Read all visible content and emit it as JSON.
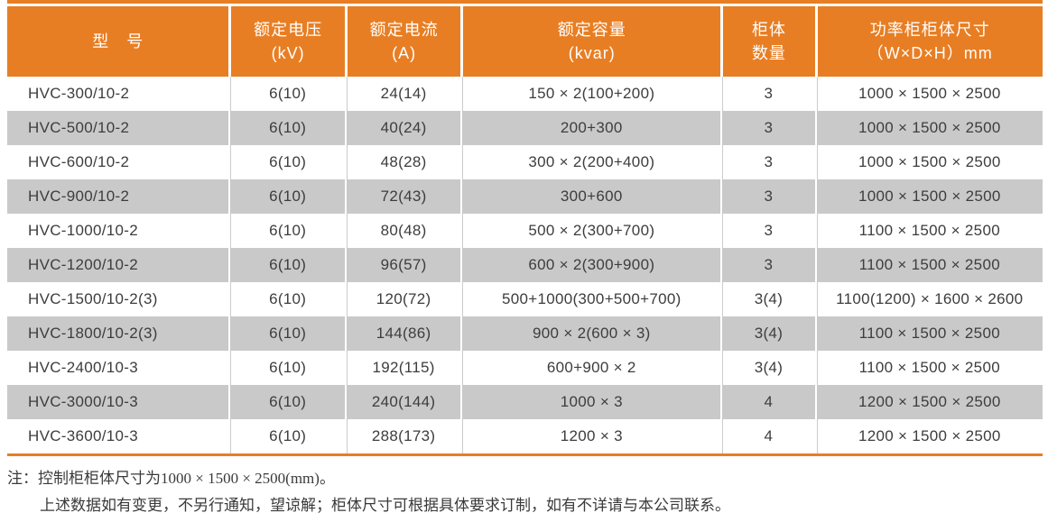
{
  "colors": {
    "accent_orange": "#e87e23",
    "stripe_gray": "#c9c9c9",
    "header_text": "#ffffff",
    "body_text": "#3d3d3d"
  },
  "table": {
    "header": {
      "columns": [
        {
          "line1": "型　号",
          "line2": ""
        },
        {
          "line1": "额定电压",
          "line2": "(kV)"
        },
        {
          "line1": "额定电流",
          "line2": "(A)"
        },
        {
          "line1": "额定容量",
          "line2": "(kvar)"
        },
        {
          "line1": "柜体",
          "line2": "数量"
        },
        {
          "line1": "功率柜柜体尺寸",
          "line2": "（W×D×H）mm"
        }
      ]
    },
    "rows": [
      {
        "model": "HVC-300/10-2",
        "voltage": "6(10)",
        "current": "24(14)",
        "capacity": "150 × 2(100+200)",
        "cabinets": "3",
        "dimensions": "1000 × 1500 × 2500"
      },
      {
        "model": "HVC-500/10-2",
        "voltage": "6(10)",
        "current": "40(24)",
        "capacity": "200+300",
        "cabinets": "3",
        "dimensions": "1000 × 1500 × 2500"
      },
      {
        "model": "HVC-600/10-2",
        "voltage": "6(10)",
        "current": "48(28)",
        "capacity": "300 × 2(200+400)",
        "cabinets": "3",
        "dimensions": "1000 × 1500 × 2500"
      },
      {
        "model": "HVC-900/10-2",
        "voltage": "6(10)",
        "current": "72(43)",
        "capacity": "300+600",
        "cabinets": "3",
        "dimensions": "1000 × 1500 × 2500"
      },
      {
        "model": "HVC-1000/10-2",
        "voltage": "6(10)",
        "current": "80(48)",
        "capacity": "500 × 2(300+700)",
        "cabinets": "3",
        "dimensions": "1100 × 1500 × 2500"
      },
      {
        "model": "HVC-1200/10-2",
        "voltage": "6(10)",
        "current": "96(57)",
        "capacity": "600 × 2(300+900)",
        "cabinets": "3",
        "dimensions": "1100 × 1500 × 2500"
      },
      {
        "model": "HVC-1500/10-2(3)",
        "voltage": "6(10)",
        "current": "120(72)",
        "capacity": "500+1000(300+500+700)",
        "cabinets": "3(4)",
        "dimensions": "1100(1200) × 1600 × 2600"
      },
      {
        "model": "HVC-1800/10-2(3)",
        "voltage": "6(10)",
        "current": "144(86)",
        "capacity": "900 × 2(600 × 3)",
        "cabinets": "3(4)",
        "dimensions": "1100 × 1500 × 2500"
      },
      {
        "model": "HVC-2400/10-3",
        "voltage": "6(10)",
        "current": "192(115)",
        "capacity": "600+900 × 2",
        "cabinets": "3(4)",
        "dimensions": "1100 × 1500 × 2500"
      },
      {
        "model": "HVC-3000/10-3",
        "voltage": "6(10)",
        "current": "240(144)",
        "capacity": "1000 × 3",
        "cabinets": "4",
        "dimensions": "1200 × 1500 × 2500"
      },
      {
        "model": "HVC-3600/10-3",
        "voltage": "6(10)",
        "current": "288(173)",
        "capacity": "1200 × 3",
        "cabinets": "4",
        "dimensions": "1200 × 1500 × 2500"
      }
    ]
  },
  "notes": {
    "line1": "注：控制柜柜体尺寸为1000 × 1500 × 2500(mm)。",
    "line2": "上述数据如有变更，不另行通知，望谅解；柜体尺寸可根据具体要求订制，如有不详请与本公司联系。"
  }
}
